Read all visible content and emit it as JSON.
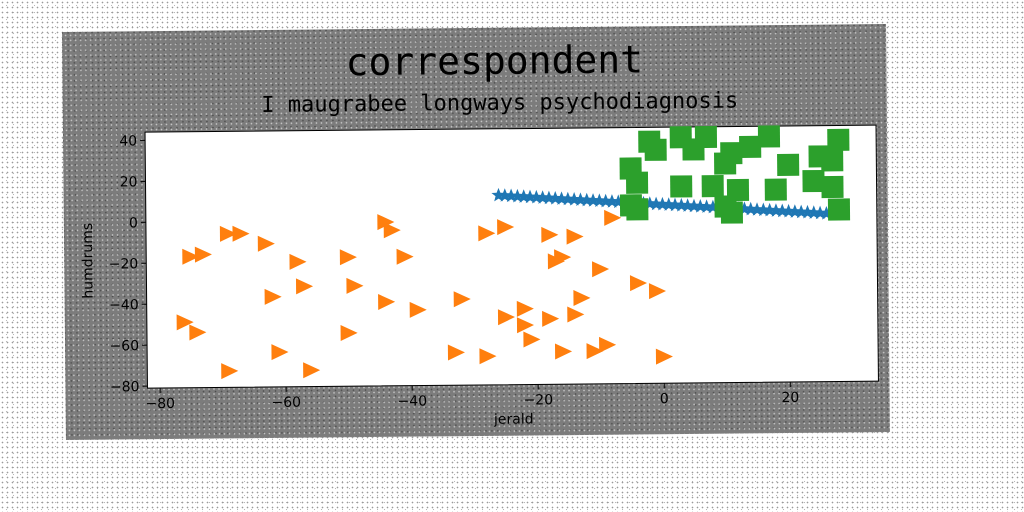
{
  "chart_data": {
    "type": "scatter",
    "title": "correspondent",
    "subtitle": "I maugrabee longways psychodiagnosis",
    "xlabel": "jerald",
    "ylabel": "humdrums",
    "xlim": [
      -82,
      34
    ],
    "ylim": [
      -81,
      44
    ],
    "xticks": [
      -80,
      -60,
      -40,
      -20,
      0,
      20
    ],
    "yticks": [
      40,
      20,
      0,
      -20,
      -40,
      -60,
      -80
    ],
    "grid": false,
    "colors": {
      "series_0": "#1f77b4",
      "series_1": "#ff7f0e",
      "series_2": "#2ca02c"
    },
    "series": [
      {
        "marker": "star",
        "color": "#1f77b4",
        "points": [
          [
            -26,
            11.5
          ],
          [
            -25,
            11.3
          ],
          [
            -24,
            11.1
          ],
          [
            -23,
            10.9
          ],
          [
            -22,
            10.7
          ],
          [
            -21,
            10.5
          ],
          [
            -20,
            10.3
          ],
          [
            -19,
            10.1
          ],
          [
            -18,
            9.9
          ],
          [
            -17,
            9.7
          ],
          [
            -16,
            9.5
          ],
          [
            -15,
            9.3
          ],
          [
            -14,
            9.1
          ],
          [
            -13,
            8.9
          ],
          [
            -12,
            8.7
          ],
          [
            -11,
            8.5
          ],
          [
            -10,
            8.3
          ],
          [
            -9,
            8.1
          ],
          [
            -8,
            7.9
          ],
          [
            -7,
            7.7
          ],
          [
            -6,
            7.5
          ],
          [
            -5,
            7.3
          ],
          [
            -4,
            7.1
          ],
          [
            -3,
            6.9
          ],
          [
            -2,
            6.7
          ],
          [
            -1,
            6.5
          ],
          [
            0,
            6.3
          ],
          [
            1,
            6.1
          ],
          [
            2,
            5.9
          ],
          [
            3,
            5.7
          ],
          [
            4,
            5.5
          ],
          [
            5,
            5.3
          ],
          [
            6,
            5.1
          ],
          [
            7,
            4.9
          ],
          [
            8,
            4.7
          ],
          [
            9,
            4.5
          ],
          [
            10,
            4.3
          ],
          [
            11,
            4.1
          ],
          [
            12,
            3.9
          ],
          [
            13,
            3.7
          ],
          [
            14,
            3.5
          ],
          [
            15,
            3.3
          ],
          [
            16,
            3.1
          ],
          [
            17,
            2.9
          ],
          [
            18,
            2.7
          ],
          [
            19,
            2.5
          ],
          [
            20,
            2.3
          ],
          [
            21,
            2.1
          ],
          [
            22,
            1.9
          ],
          [
            23,
            1.7
          ],
          [
            24,
            1.5
          ],
          [
            25,
            1.3
          ],
          [
            26,
            1.1
          ],
          [
            27,
            0.9
          ]
        ]
      },
      {
        "marker": "triangle-right",
        "color": "#ff7f0e",
        "points": [
          [
            -75,
            -17
          ],
          [
            -73,
            -16
          ],
          [
            -69,
            -6
          ],
          [
            -67,
            -6
          ],
          [
            -63,
            -11
          ],
          [
            -58,
            -20
          ],
          [
            -76,
            -49
          ],
          [
            -74,
            -54
          ],
          [
            -69,
            -73
          ],
          [
            -62,
            -37
          ],
          [
            -57,
            -32
          ],
          [
            -61,
            -64
          ],
          [
            -56,
            -73
          ],
          [
            -50,
            -18
          ],
          [
            -49,
            -32
          ],
          [
            -50,
            -55
          ],
          [
            -44,
            -1
          ],
          [
            -43,
            -5
          ],
          [
            -41,
            -18
          ],
          [
            -44,
            -40
          ],
          [
            -39,
            -44
          ],
          [
            -33,
            -65
          ],
          [
            -32,
            -39
          ],
          [
            -28,
            -7
          ],
          [
            -28,
            -67
          ],
          [
            -25,
            -4
          ],
          [
            -25,
            -48
          ],
          [
            -22,
            -52
          ],
          [
            -22,
            -44
          ],
          [
            -21,
            -59
          ],
          [
            -18,
            -8
          ],
          [
            -18,
            -49
          ],
          [
            -17,
            -21
          ],
          [
            -16,
            -19
          ],
          [
            -16,
            -65
          ],
          [
            -14,
            -9
          ],
          [
            -14,
            -47
          ],
          [
            -13,
            -39
          ],
          [
            -11,
            -65
          ],
          [
            -10,
            -25
          ],
          [
            -9,
            -62
          ],
          [
            -8,
            0
          ],
          [
            -4,
            -32
          ],
          [
            -1,
            -36
          ],
          [
            0,
            -68
          ]
        ]
      },
      {
        "marker": "square",
        "color": "#2ca02c",
        "points": [
          [
            -2,
            37
          ],
          [
            -1,
            33
          ],
          [
            3,
            39
          ],
          [
            7,
            39
          ],
          [
            5,
            33
          ],
          [
            11,
            31
          ],
          [
            14,
            34
          ],
          [
            17,
            39
          ],
          [
            20,
            25
          ],
          [
            25,
            29
          ],
          [
            28,
            37
          ],
          [
            27,
            27
          ],
          [
            -5,
            24
          ],
          [
            -4,
            17
          ],
          [
            3,
            15
          ],
          [
            8,
            15
          ],
          [
            10,
            26
          ],
          [
            12,
            13
          ],
          [
            18,
            13
          ],
          [
            24,
            17
          ],
          [
            27,
            14
          ],
          [
            -5,
            6
          ],
          [
            -4,
            4
          ],
          [
            10,
            5
          ],
          [
            11,
            2
          ],
          [
            28,
            3
          ]
        ]
      }
    ]
  }
}
